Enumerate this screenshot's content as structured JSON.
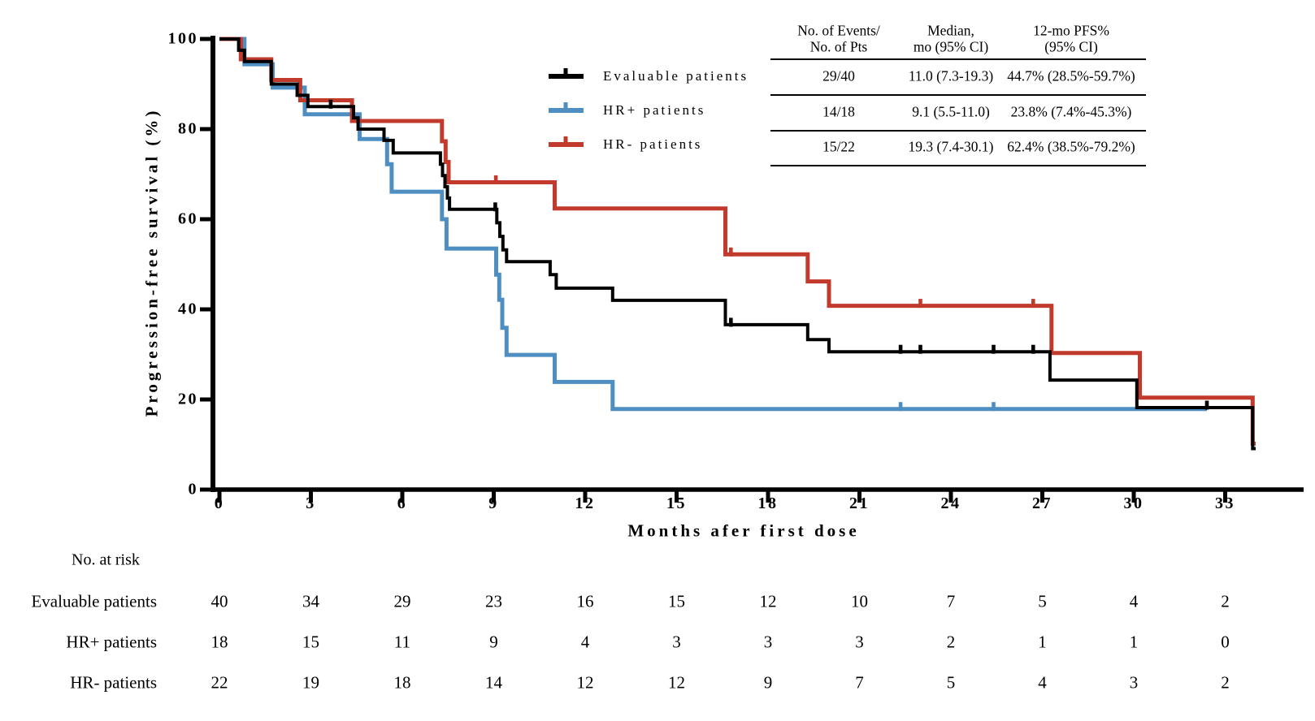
{
  "figure": {
    "y_axis_title": "Progression-free survival (%)",
    "x_axis_title": "Months afer first dose",
    "y_ticks": [
      0,
      20,
      40,
      60,
      80,
      100
    ],
    "x_ticks": [
      0,
      3,
      6,
      9,
      12,
      15,
      18,
      21,
      24,
      27,
      30,
      33
    ]
  },
  "colors": {
    "evaluable": "#000000",
    "hr_positive": "#4E8EC1",
    "hr_negative": "#C13A2C",
    "axis": "#000000"
  },
  "legend": {
    "items": [
      {
        "label": "Evaluable patients"
      },
      {
        "label": "HR+ patients"
      },
      {
        "label": "HR- patients"
      }
    ]
  },
  "stats_table": {
    "headers": [
      {
        "line1": "No. of Events/",
        "line2": "No. of Pts"
      },
      {
        "line1": "Median,",
        "line2": "mo (95% CI)"
      },
      {
        "line1": "12-mo PFS%",
        "line2": "(95% CI)"
      }
    ],
    "rows": [
      {
        "events": "29/40",
        "median": "11.0 (7.3-19.3)",
        "pfs": "44.7% (28.5%-59.7%)"
      },
      {
        "events": "14/18",
        "median": "9.1 (5.5-11.0)",
        "pfs": "23.8% (7.4%-45.3%)"
      },
      {
        "events": "15/22",
        "median": "19.3 (7.4-30.1)",
        "pfs": "62.4% (38.5%-79.2%)"
      }
    ]
  },
  "risk_table": {
    "title": "No. at risk",
    "time_points": [
      0,
      3,
      6,
      9,
      12,
      15,
      18,
      21,
      24,
      27,
      30,
      33
    ],
    "groups": [
      {
        "label": "Evaluable patients",
        "counts": [
          40,
          34,
          29,
          23,
          16,
          15,
          12,
          10,
          7,
          5,
          4,
          2
        ]
      },
      {
        "label": "HR+ patients",
        "counts": [
          18,
          15,
          11,
          9,
          4,
          3,
          3,
          3,
          2,
          1,
          1,
          0
        ]
      },
      {
        "label": "HR- patients",
        "counts": [
          22,
          19,
          18,
          14,
          12,
          12,
          9,
          7,
          5,
          4,
          3,
          2
        ]
      }
    ]
  },
  "chart_data": {
    "type": "line",
    "subtype": "kaplan-meier-step",
    "title": "",
    "xlabel": "Months afer first dose",
    "ylabel": "Progression-free survival (%)",
    "xlim": [
      0,
      35.6
    ],
    "ylim": [
      0,
      100
    ],
    "x_ticks": [
      0,
      3,
      6,
      9,
      12,
      15,
      18,
      21,
      24,
      27,
      30,
      33
    ],
    "y_ticks": [
      0,
      20,
      40,
      60,
      80,
      100
    ],
    "grid": false,
    "legend_position": "upper-center-left",
    "series": [
      {
        "name": "Evaluable patients",
        "color": "#000000",
        "n": 40,
        "events": 29,
        "median_months": "11.0 (7.3-19.3)",
        "pfs_12mo": "44.7% (28.5%-59.7%)",
        "steps": [
          [
            0,
            100
          ],
          [
            0.63,
            97.5
          ],
          [
            0.82,
            95
          ],
          [
            1.7,
            90
          ],
          [
            2.55,
            87.5
          ],
          [
            2.9,
            85
          ],
          [
            4.4,
            82.5
          ],
          [
            4.55,
            80
          ],
          [
            5.4,
            77.5
          ],
          [
            5.7,
            74.7
          ],
          [
            7.25,
            72.2
          ],
          [
            7.32,
            69.7
          ],
          [
            7.4,
            67.2
          ],
          [
            7.48,
            64.7
          ],
          [
            7.55,
            62.2
          ],
          [
            9.1,
            59.2
          ],
          [
            9.2,
            56.2
          ],
          [
            9.3,
            53.2
          ],
          [
            9.42,
            50.6
          ],
          [
            10.85,
            47.7
          ],
          [
            11.05,
            44.7
          ],
          [
            12.9,
            42.0
          ],
          [
            16.6,
            36.6
          ],
          [
            19.3,
            33.3
          ],
          [
            20.0,
            30.6
          ],
          [
            27.25,
            24.3
          ],
          [
            30.1,
            18.2
          ],
          [
            33.9,
            9.1
          ]
        ],
        "censors": [
          [
            3.65,
            85
          ],
          [
            9.05,
            62.2
          ],
          [
            16.78,
            36.6
          ],
          [
            22.35,
            30.6
          ],
          [
            23.0,
            30.6
          ],
          [
            25.4,
            30.6
          ],
          [
            26.7,
            30.6
          ],
          [
            32.4,
            18.2
          ]
        ],
        "end_month": 34.0
      },
      {
        "name": "HR+ patients",
        "color": "#4E8EC1",
        "n": 18,
        "events": 14,
        "median_months": "9.1 (5.5-11.0)",
        "pfs_12mo": "23.8% (7.4%-45.3%)",
        "steps": [
          [
            0,
            100
          ],
          [
            0.82,
            94.4
          ],
          [
            1.75,
            89.2
          ],
          [
            2.8,
            83.3
          ],
          [
            4.6,
            77.8
          ],
          [
            5.5,
            72.2
          ],
          [
            5.65,
            66.1
          ],
          [
            7.3,
            60.0
          ],
          [
            7.45,
            53.5
          ],
          [
            9.08,
            47.7
          ],
          [
            9.18,
            42.1
          ],
          [
            9.28,
            35.9
          ],
          [
            9.42,
            29.9
          ],
          [
            11.0,
            23.9
          ],
          [
            12.9,
            17.9
          ]
        ],
        "censors": [
          [
            22.35,
            17.9
          ],
          [
            25.4,
            17.9
          ]
        ],
        "end_month": 32.4
      },
      {
        "name": "HR- patients",
        "color": "#C13A2C",
        "n": 22,
        "events": 15,
        "median_months": "19.3 (7.4-30.1)",
        "pfs_12mo": "62.4% (38.5%-79.2%)",
        "steps": [
          [
            0,
            100
          ],
          [
            0.7,
            95.5
          ],
          [
            1.7,
            90.9
          ],
          [
            2.65,
            86.4
          ],
          [
            4.35,
            81.8
          ],
          [
            7.3,
            77.3
          ],
          [
            7.42,
            72.7
          ],
          [
            7.52,
            68.2
          ],
          [
            11.0,
            62.4
          ],
          [
            16.6,
            52.2
          ],
          [
            19.3,
            46.2
          ],
          [
            20.0,
            40.8
          ],
          [
            27.3,
            30.3
          ],
          [
            30.2,
            20.4
          ],
          [
            33.9,
            10.2
          ]
        ],
        "censors": [
          [
            9.07,
            68.2
          ],
          [
            16.78,
            52.2
          ],
          [
            23.0,
            40.8
          ],
          [
            26.7,
            40.8
          ],
          [
            33.9,
            10.2
          ]
        ],
        "end_month": 34.0
      }
    ]
  }
}
